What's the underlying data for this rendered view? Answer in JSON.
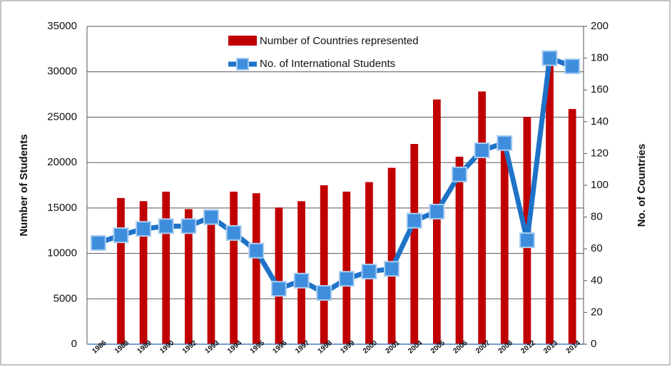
{
  "chart_data": {
    "type": "combo",
    "categories": [
      "1986",
      "1988",
      "1989",
      "1990",
      "1992",
      "1993",
      "1994",
      "1995",
      "1996",
      "1997",
      "1998",
      "1999",
      "2000",
      "2001",
      "2004",
      "2005",
      "2006",
      "2007",
      "2008",
      "2012",
      "2013",
      "2014"
    ],
    "series": [
      {
        "name": "Number of Countries represented",
        "type": "bar",
        "axis": "y2",
        "color": "#c00000",
        "values": [
          null,
          92,
          90,
          96,
          85,
          80,
          96,
          95,
          86,
          90,
          100,
          96,
          102,
          111,
          126,
          154,
          118,
          159,
          122,
          143,
          178,
          148
        ]
      },
      {
        "name": "No. of International Students",
        "type": "line",
        "axis": "y",
        "color": "#1e73c8",
        "values": [
          11150,
          12000,
          12700,
          13000,
          13000,
          14000,
          12250,
          10300,
          6100,
          7000,
          5650,
          7200,
          8000,
          8300,
          13600,
          14600,
          18700,
          21350,
          22150,
          11450,
          31500,
          30600
        ]
      }
    ],
    "ylabel": "Number of Students",
    "y2label": "No. of Countries",
    "ylim": [
      0,
      35000
    ],
    "yticks": [
      0,
      5000,
      10000,
      15000,
      20000,
      25000,
      30000,
      35000
    ],
    "y2lim": [
      0,
      200
    ],
    "y2ticks": [
      0,
      20,
      40,
      60,
      80,
      100,
      120,
      140,
      160,
      180,
      200
    ],
    "grid": true,
    "legend": "top"
  }
}
